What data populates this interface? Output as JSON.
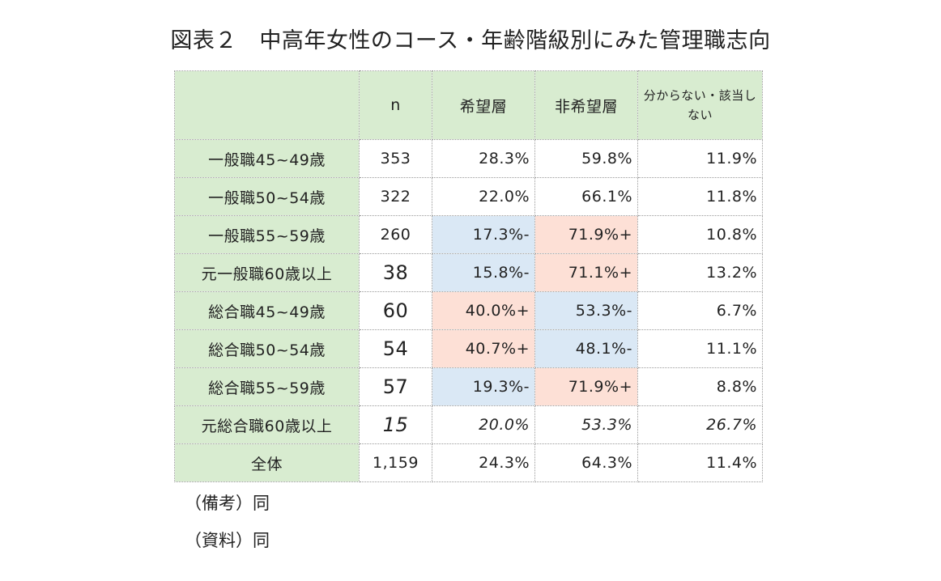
{
  "title": "図表２　中高年女性のコース・年齢階級別にみた管理職志向",
  "colors": {
    "header_bg": "#d8ecd0",
    "significantly_higher": "#fde0d6",
    "significantly_lower": "#dae8f5"
  },
  "chart_data": {
    "type": "table",
    "columns": [
      "",
      "n",
      "希望層",
      "非希望層",
      "分からない・該当しない"
    ],
    "rows": [
      {
        "label": "一般職45~49歳",
        "n": "353",
        "cells": [
          {
            "text": "28.3%",
            "value": 28.3,
            "mark": ""
          },
          {
            "text": "59.8%",
            "value": 59.8,
            "mark": ""
          },
          {
            "text": "11.9%",
            "value": 11.9,
            "mark": ""
          }
        ]
      },
      {
        "label": "一般職50~54歳",
        "n": "322",
        "cells": [
          {
            "text": "22.0%",
            "value": 22.0,
            "mark": ""
          },
          {
            "text": "66.1%",
            "value": 66.1,
            "mark": ""
          },
          {
            "text": "11.8%",
            "value": 11.8,
            "mark": ""
          }
        ]
      },
      {
        "label": "一般職55~59歳",
        "n": "260",
        "cells": [
          {
            "text": "17.3%-",
            "value": 17.3,
            "mark": "-"
          },
          {
            "text": "71.9%+",
            "value": 71.9,
            "mark": "+"
          },
          {
            "text": "10.8%",
            "value": 10.8,
            "mark": ""
          }
        ]
      },
      {
        "label": "元一般職60歳以上",
        "n": "38",
        "cells": [
          {
            "text": "15.8%-",
            "value": 15.8,
            "mark": "-"
          },
          {
            "text": "71.1%+",
            "value": 71.1,
            "mark": "+"
          },
          {
            "text": "13.2%",
            "value": 13.2,
            "mark": ""
          }
        ]
      },
      {
        "label": "総合職45~49歳",
        "n": "60",
        "cells": [
          {
            "text": "40.0%+",
            "value": 40.0,
            "mark": "+"
          },
          {
            "text": "53.3%-",
            "value": 53.3,
            "mark": "-"
          },
          {
            "text": "6.7%",
            "value": 6.7,
            "mark": ""
          }
        ]
      },
      {
        "label": "総合職50~54歳",
        "n": "54",
        "cells": [
          {
            "text": "40.7%+",
            "value": 40.7,
            "mark": "+"
          },
          {
            "text": "48.1%-",
            "value": 48.1,
            "mark": "-"
          },
          {
            "text": "11.1%",
            "value": 11.1,
            "mark": ""
          }
        ]
      },
      {
        "label": "総合職55~59歳",
        "n": "57",
        "cells": [
          {
            "text": "19.3%-",
            "value": 19.3,
            "mark": "-"
          },
          {
            "text": "71.9%+",
            "value": 71.9,
            "mark": "+"
          },
          {
            "text": "8.8%",
            "value": 8.8,
            "mark": ""
          }
        ]
      },
      {
        "label": "元総合職60歳以上",
        "n": "15",
        "italic": true,
        "cells": [
          {
            "text": "20.0%",
            "value": 20.0,
            "mark": ""
          },
          {
            "text": "53.3%",
            "value": 53.3,
            "mark": ""
          },
          {
            "text": "26.7%",
            "value": 26.7,
            "mark": ""
          }
        ]
      },
      {
        "label": "全体",
        "n": "1,159",
        "cells": [
          {
            "text": "24.3%",
            "value": 24.3,
            "mark": ""
          },
          {
            "text": "64.3%",
            "value": 64.3,
            "mark": ""
          },
          {
            "text": "11.4%",
            "value": 11.4,
            "mark": ""
          }
        ]
      }
    ]
  },
  "notes": {
    "remarks": "（備考）同",
    "source": "（資料）同"
  }
}
